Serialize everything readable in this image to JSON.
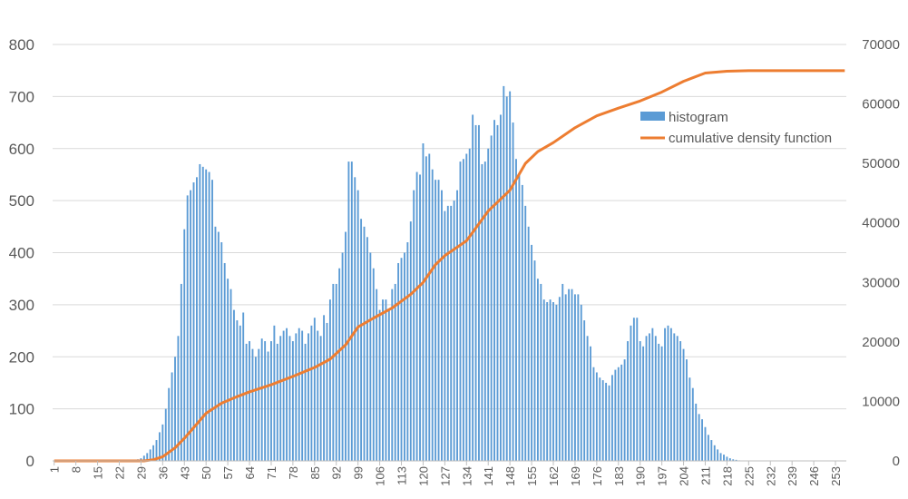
{
  "chart_data": {
    "type": "bar+line",
    "x_tick_labels": [
      "1",
      "8",
      "15",
      "22",
      "29",
      "36",
      "43",
      "50",
      "57",
      "64",
      "71",
      "78",
      "85",
      "92",
      "99",
      "106",
      "113",
      "120",
      "127",
      "134",
      "141",
      "148",
      "155",
      "162",
      "169",
      "176",
      "183",
      "190",
      "197",
      "204",
      "211",
      "218",
      "225",
      "232",
      "239",
      "246",
      "253"
    ],
    "y_left_ticks": [
      "0",
      "100",
      "200",
      "300",
      "400",
      "500",
      "600",
      "700",
      "800"
    ],
    "y_right_ticks": [
      "0",
      "10000",
      "20000",
      "30000",
      "40000",
      "50000",
      "60000",
      "70000"
    ],
    "y_left_range": [
      0,
      800
    ],
    "y_right_range": [
      0,
      70000
    ],
    "x_range": [
      1,
      256
    ],
    "grid": true,
    "legend_position": "right",
    "series": [
      {
        "name": "histogram",
        "type": "bar",
        "axis": "left",
        "color": "#5B9BD5",
        "values": [
          0,
          0,
          0,
          0,
          0,
          0,
          0,
          0,
          0,
          0,
          0,
          0,
          0,
          0,
          0,
          0,
          0,
          0,
          0,
          0,
          0,
          0,
          0,
          0,
          0,
          1,
          2,
          3,
          5,
          10,
          15,
          22,
          30,
          40,
          55,
          70,
          100,
          140,
          170,
          200,
          240,
          340,
          445,
          510,
          520,
          535,
          545,
          570,
          565,
          560,
          555,
          540,
          450,
          440,
          420,
          380,
          350,
          330,
          290,
          270,
          260,
          285,
          225,
          230,
          215,
          200,
          215,
          235,
          230,
          210,
          230,
          260,
          225,
          240,
          250,
          255,
          240,
          230,
          245,
          255,
          250,
          225,
          245,
          260,
          275,
          250,
          240,
          280,
          265,
          310,
          340,
          340,
          370,
          400,
          440,
          575,
          575,
          545,
          520,
          465,
          450,
          430,
          400,
          370,
          330,
          290,
          310,
          310,
          290,
          330,
          340,
          380,
          390,
          400,
          420,
          460,
          520,
          555,
          550,
          610,
          585,
          590,
          560,
          540,
          540,
          520,
          480,
          490,
          490,
          500,
          520,
          575,
          580,
          590,
          600,
          665,
          645,
          645,
          570,
          575,
          600,
          625,
          655,
          645,
          665,
          720,
          700,
          710,
          650,
          580,
          550,
          530,
          490,
          450,
          415,
          385,
          350,
          340,
          310,
          305,
          310,
          305,
          300,
          315,
          340,
          320,
          330,
          330,
          320,
          320,
          300,
          270,
          240,
          220,
          180,
          170,
          160,
          155,
          150,
          145,
          165,
          175,
          180,
          185,
          195,
          230,
          260,
          275,
          275,
          230,
          220,
          240,
          245,
          255,
          240,
          225,
          220,
          255,
          260,
          255,
          245,
          240,
          230,
          215,
          195,
          160,
          140,
          110,
          90,
          80,
          65,
          50,
          40,
          30,
          22,
          15,
          12,
          8,
          5,
          3,
          2,
          1,
          0,
          0,
          0,
          0,
          0,
          0,
          0,
          0,
          0,
          0,
          0,
          0,
          0,
          0,
          0,
          0,
          0,
          0,
          0,
          0,
          0,
          0,
          0,
          0,
          0,
          0,
          0,
          0,
          0,
          0,
          0,
          0,
          0
        ]
      },
      {
        "name": "cumulative density function",
        "type": "line",
        "axis": "right",
        "color": "#ED7D31",
        "points": [
          [
            1,
            0
          ],
          [
            30,
            0
          ],
          [
            33,
            200
          ],
          [
            36,
            700
          ],
          [
            40,
            2200
          ],
          [
            43,
            3800
          ],
          [
            47,
            6200
          ],
          [
            50,
            8000
          ],
          [
            55,
            9700
          ],
          [
            60,
            10800
          ],
          [
            64,
            11600
          ],
          [
            71,
            12800
          ],
          [
            78,
            14200
          ],
          [
            85,
            15700
          ],
          [
            90,
            17100
          ],
          [
            95,
            19500
          ],
          [
            99,
            22500
          ],
          [
            104,
            24000
          ],
          [
            110,
            25700
          ],
          [
            116,
            28000
          ],
          [
            120,
            30000
          ],
          [
            124,
            33000
          ],
          [
            127,
            34500
          ],
          [
            134,
            37000
          ],
          [
            141,
            42000
          ],
          [
            148,
            45500
          ],
          [
            153,
            50000
          ],
          [
            157,
            52000
          ],
          [
            162,
            53500
          ],
          [
            169,
            56000
          ],
          [
            176,
            58000
          ],
          [
            183,
            59300
          ],
          [
            190,
            60500
          ],
          [
            197,
            62000
          ],
          [
            204,
            63800
          ],
          [
            211,
            65200
          ],
          [
            218,
            65500
          ],
          [
            225,
            65600
          ],
          [
            256,
            65600
          ]
        ]
      }
    ]
  }
}
